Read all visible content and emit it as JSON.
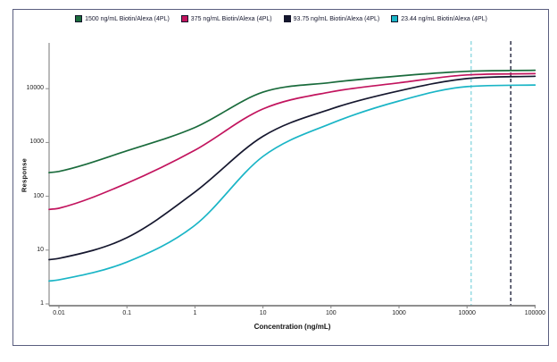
{
  "figure": {
    "background": "#ffffff",
    "border_color": "#5a5e7f"
  },
  "chart_data": {
    "type": "line",
    "title": "",
    "xlabel": "Concentration (ng/mL)",
    "ylabel": "Response",
    "x_scale": "log",
    "y_scale": "log",
    "grid": false,
    "legend_position": "top-center",
    "xlim": [
      0.01,
      100000
    ],
    "ylim": [
      1,
      75000
    ],
    "x_ticks": [
      0.01,
      0.1,
      1,
      10,
      100,
      1000,
      10000,
      100000
    ],
    "x_tick_labels": [
      "0.01",
      "0.1",
      "1",
      "10",
      "100",
      "1000",
      "10000",
      "100000"
    ],
    "y_ticks": [
      1,
      10,
      100,
      1000,
      10000
    ],
    "y_tick_labels": [
      "1",
      "10",
      "100",
      "1000",
      "10000"
    ],
    "x": [
      0.01,
      0.1,
      1,
      10,
      100,
      1000,
      10000,
      100000
    ],
    "series": [
      {
        "name": "1500 ng/mL Biotin/Alexa (4PL)",
        "color": "#1a6b3c",
        "values": [
          290,
          700,
          1900,
          8600,
          13000,
          17200,
          21000,
          22000
        ]
      },
      {
        "name": "375 ng/mL Biotin/Alexa (4PL)",
        "color": "#c2145e",
        "values": [
          60,
          175,
          720,
          4200,
          8700,
          12800,
          18000,
          19000
        ]
      },
      {
        "name": "93.75 ng/mL Biotin/Alexa (4PL)",
        "color": "#15172e",
        "values": [
          7,
          17,
          120,
          1300,
          4200,
          9100,
          15400,
          17000
        ]
      },
      {
        "name": "23.44 ng/mL Biotin/Alexa (4PL)",
        "color": "#1ab5c6",
        "values": [
          2.8,
          6,
          29,
          550,
          2250,
          5900,
          10900,
          11700
        ]
      }
    ],
    "reference_lines": [
      {
        "x": 11500,
        "color": "#8fd9e2",
        "style": "dashed",
        "name": "cyan-reference-line"
      },
      {
        "x": 44000,
        "color": "#22243c",
        "style": "dashed",
        "name": "black-reference-line"
      }
    ]
  },
  "axis_style": {
    "x_axis_color": "#7f7f7f",
    "y_axis_color": "#8c8c8c",
    "tick_text_color": "#222222"
  }
}
